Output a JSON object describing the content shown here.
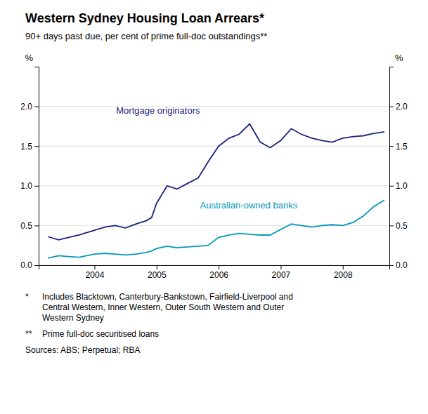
{
  "chart_data": {
    "type": "line",
    "title": "Western Sydney Housing Loan Arrears*",
    "subtitle": "90+ days past due, per cent of prime full-doc outstandings**",
    "ylabel": "%",
    "y2label": "%",
    "x": [
      2003.25,
      2003.42,
      2003.58,
      2003.75,
      2004.0,
      2004.17,
      2004.33,
      2004.5,
      2004.67,
      2004.83,
      2004.92,
      2005.0,
      2005.17,
      2005.33,
      2005.5,
      2005.67,
      2005.83,
      2006.0,
      2006.17,
      2006.33,
      2006.5,
      2006.67,
      2006.83,
      2007.0,
      2007.17,
      2007.33,
      2007.5,
      2007.67,
      2007.83,
      2008.0,
      2008.17,
      2008.33,
      2008.5,
      2008.67
    ],
    "series": [
      {
        "name": "Mortgage originators",
        "color": "#1a237e",
        "values": [
          0.36,
          0.32,
          0.35,
          0.38,
          0.44,
          0.48,
          0.5,
          0.47,
          0.52,
          0.56,
          0.6,
          0.78,
          1.0,
          0.96,
          1.03,
          1.1,
          1.3,
          1.5,
          1.6,
          1.65,
          1.78,
          1.55,
          1.48,
          1.57,
          1.72,
          1.65,
          1.6,
          1.57,
          1.55,
          1.6,
          1.62,
          1.63,
          1.66,
          1.68
        ]
      },
      {
        "name": "Australian-owned banks",
        "color": "#0099bb",
        "values": [
          0.09,
          0.12,
          0.11,
          0.1,
          0.14,
          0.15,
          0.14,
          0.13,
          0.14,
          0.16,
          0.18,
          0.21,
          0.24,
          0.22,
          0.23,
          0.24,
          0.25,
          0.35,
          0.38,
          0.4,
          0.39,
          0.38,
          0.38,
          0.45,
          0.52,
          0.5,
          0.48,
          0.5,
          0.51,
          0.5,
          0.54,
          0.62,
          0.74,
          0.82
        ]
      }
    ],
    "xlim": [
      2003.1,
      2008.75
    ],
    "xticks": [
      2004,
      2005,
      2006,
      2007,
      2008
    ],
    "ylim": [
      0,
      2.5
    ],
    "yticks": [
      {
        "value": 0,
        "label": "0.0"
      },
      0.5,
      {
        "value": 1,
        "label": "1.0"
      },
      1.5,
      {
        "value": 2,
        "label": "2.0"
      }
    ],
    "y2lim": [
      0,
      2.5
    ],
    "y2ticks": [
      {
        "value": 0,
        "label": "0.0"
      },
      0.5,
      {
        "value": 1,
        "label": "1.0"
      },
      1.5,
      {
        "value": 2,
        "label": "2.0"
      }
    ],
    "grid": true,
    "footnotes": [
      {
        "mark": "*",
        "text": "Includes Blacktown, Canterbury-Bankstown, Fairfield-Liverpool and\nCentral Western, Inner Western, Outer South Western and Outer\nWestern Sydney"
      },
      {
        "mark": "**",
        "text": "Prime full-doc securitised loans"
      }
    ],
    "source": "Sources: ABS; Perpetual; RBA"
  }
}
